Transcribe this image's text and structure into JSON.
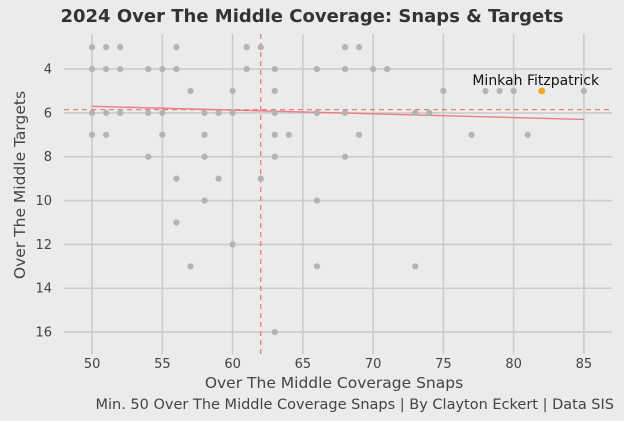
{
  "chart_data": {
    "type": "scatter",
    "title": "2024 Over The Middle Coverage: Snaps & Targets",
    "xlabel": "Over The Middle Coverage Snaps",
    "ylabel": "Over The Middle Targets",
    "caption": "Min. 50 Over The Middle Coverage Snaps | By Clayton Eckert | Data SIS",
    "xlim": [
      48,
      87
    ],
    "ylim": [
      17,
      2.4
    ],
    "y_inverted": true,
    "xticks": [
      50,
      55,
      60,
      65,
      70,
      75,
      80,
      85
    ],
    "yticks": [
      4,
      6,
      8,
      10,
      12,
      14,
      16
    ],
    "grid": true,
    "points": [
      {
        "x": 50,
        "y": 3
      },
      {
        "x": 51,
        "y": 3
      },
      {
        "x": 52,
        "y": 3
      },
      {
        "x": 56,
        "y": 3
      },
      {
        "x": 61,
        "y": 3
      },
      {
        "x": 62,
        "y": 3
      },
      {
        "x": 68,
        "y": 3
      },
      {
        "x": 69,
        "y": 3
      },
      {
        "x": 50,
        "y": 4
      },
      {
        "x": 51,
        "y": 4
      },
      {
        "x": 52,
        "y": 4
      },
      {
        "x": 54,
        "y": 4
      },
      {
        "x": 55,
        "y": 4
      },
      {
        "x": 56,
        "y": 4
      },
      {
        "x": 61,
        "y": 4
      },
      {
        "x": 63,
        "y": 4
      },
      {
        "x": 66,
        "y": 4
      },
      {
        "x": 68,
        "y": 4
      },
      {
        "x": 70,
        "y": 4
      },
      {
        "x": 71,
        "y": 4
      },
      {
        "x": 57,
        "y": 5
      },
      {
        "x": 60,
        "y": 5
      },
      {
        "x": 63,
        "y": 5
      },
      {
        "x": 75,
        "y": 5
      },
      {
        "x": 78,
        "y": 5
      },
      {
        "x": 79,
        "y": 5
      },
      {
        "x": 80,
        "y": 5
      },
      {
        "x": 85,
        "y": 5
      },
      {
        "x": 50,
        "y": 6
      },
      {
        "x": 51,
        "y": 6
      },
      {
        "x": 52,
        "y": 6
      },
      {
        "x": 54,
        "y": 6
      },
      {
        "x": 55,
        "y": 6
      },
      {
        "x": 58,
        "y": 6
      },
      {
        "x": 59,
        "y": 6
      },
      {
        "x": 60,
        "y": 6
      },
      {
        "x": 63,
        "y": 6
      },
      {
        "x": 66,
        "y": 6
      },
      {
        "x": 68,
        "y": 6
      },
      {
        "x": 73,
        "y": 6
      },
      {
        "x": 74,
        "y": 6
      },
      {
        "x": 50,
        "y": 7
      },
      {
        "x": 51,
        "y": 7
      },
      {
        "x": 55,
        "y": 7
      },
      {
        "x": 58,
        "y": 7
      },
      {
        "x": 63,
        "y": 7
      },
      {
        "x": 64,
        "y": 7
      },
      {
        "x": 69,
        "y": 7
      },
      {
        "x": 77,
        "y": 7
      },
      {
        "x": 81,
        "y": 7
      },
      {
        "x": 54,
        "y": 8
      },
      {
        "x": 58,
        "y": 8
      },
      {
        "x": 63,
        "y": 8
      },
      {
        "x": 68,
        "y": 8
      },
      {
        "x": 56,
        "y": 9
      },
      {
        "x": 59,
        "y": 9
      },
      {
        "x": 62,
        "y": 9
      },
      {
        "x": 58,
        "y": 10
      },
      {
        "x": 66,
        "y": 10
      },
      {
        "x": 56,
        "y": 11
      },
      {
        "x": 60,
        "y": 12
      },
      {
        "x": 57,
        "y": 13
      },
      {
        "x": 66,
        "y": 13
      },
      {
        "x": 73,
        "y": 13
      },
      {
        "x": 63,
        "y": 16
      }
    ],
    "highlight": {
      "label": "Minkah Fitzpatrick",
      "x": 82,
      "y": 5,
      "color": "#f5a623"
    },
    "point_color": "#b3b3b3",
    "reference_lines": {
      "vertical_x": 62,
      "horizontal_y": 5.85,
      "color": "#e87e84",
      "style": "dashed"
    },
    "trend_line": {
      "x": [
        50,
        85
      ],
      "y": [
        5.7,
        6.3
      ],
      "color": "#e87e84"
    }
  }
}
